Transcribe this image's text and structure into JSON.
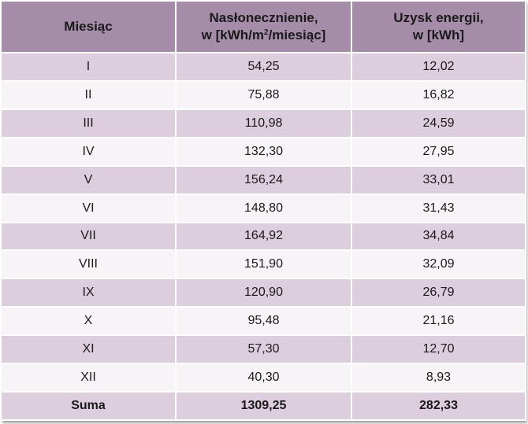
{
  "table": {
    "header": [
      {
        "lines": [
          "Miesiąc"
        ]
      },
      {
        "lines": [
          "Nasłonecznienie,"
        ],
        "unit": {
          "before": "w [kWh/m",
          "sup": "2",
          "after": "/miesiąc]"
        }
      },
      {
        "lines": [
          "Uzysk energii,",
          "w [kWh]"
        ]
      }
    ],
    "rows": [
      [
        "I",
        "54,25",
        "12,02"
      ],
      [
        "II",
        "75,88",
        "16,82"
      ],
      [
        "III",
        "110,98",
        "24,59"
      ],
      [
        "IV",
        "132,30",
        "27,95"
      ],
      [
        "V",
        "156,24",
        "33,01"
      ],
      [
        "VI",
        "148,80",
        "31,43"
      ],
      [
        "VII",
        "164,92",
        "34,84"
      ],
      [
        "VIII",
        "151,90",
        "32,09"
      ],
      [
        "IX",
        "120,90",
        "26,79"
      ],
      [
        "X",
        "95,48",
        "21,16"
      ],
      [
        "XI",
        "57,30",
        "12,70"
      ],
      [
        "XII",
        "40,30",
        "8,93"
      ]
    ],
    "footer": [
      "Suma",
      "1309,25",
      "282,33"
    ]
  }
}
